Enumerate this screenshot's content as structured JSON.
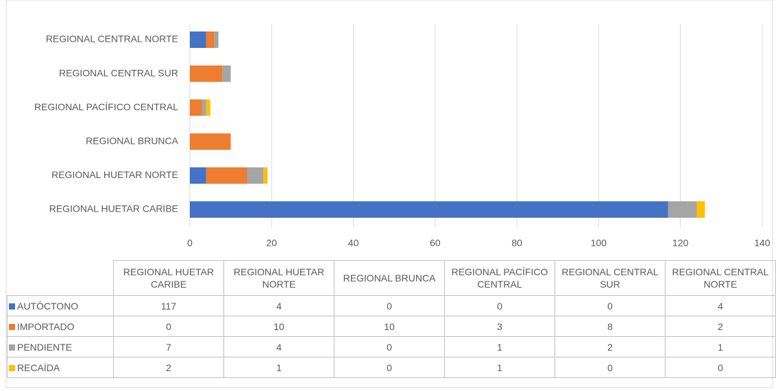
{
  "chart_data": {
    "type": "barh_stacked",
    "categories": [
      "REGIONAL HUETAR CARIBE",
      "REGIONAL HUETAR NORTE",
      "REGIONAL BRUNCA",
      "REGIONAL PACÍFICO CENTRAL",
      "REGIONAL CENTRAL SUR",
      "REGIONAL CENTRAL NORTE"
    ],
    "series": [
      {
        "name": "AUTÓCTONO",
        "color": "#4472c4",
        "values": [
          117,
          4,
          0,
          0,
          0,
          4
        ]
      },
      {
        "name": "IMPORTADO",
        "color": "#ed7d31",
        "values": [
          0,
          10,
          10,
          3,
          8,
          2
        ]
      },
      {
        "name": "PENDIENTE",
        "color": "#a5a5a5",
        "values": [
          7,
          4,
          0,
          1,
          2,
          1
        ]
      },
      {
        "name": "RECAÍDA",
        "color": "#ffc000",
        "values": [
          2,
          1,
          0,
          1,
          0,
          0
        ]
      }
    ],
    "xlim": [
      0,
      140
    ],
    "xticks": [
      0,
      20,
      40,
      60,
      80,
      100,
      120,
      140
    ],
    "grid": true,
    "data_table": true
  }
}
